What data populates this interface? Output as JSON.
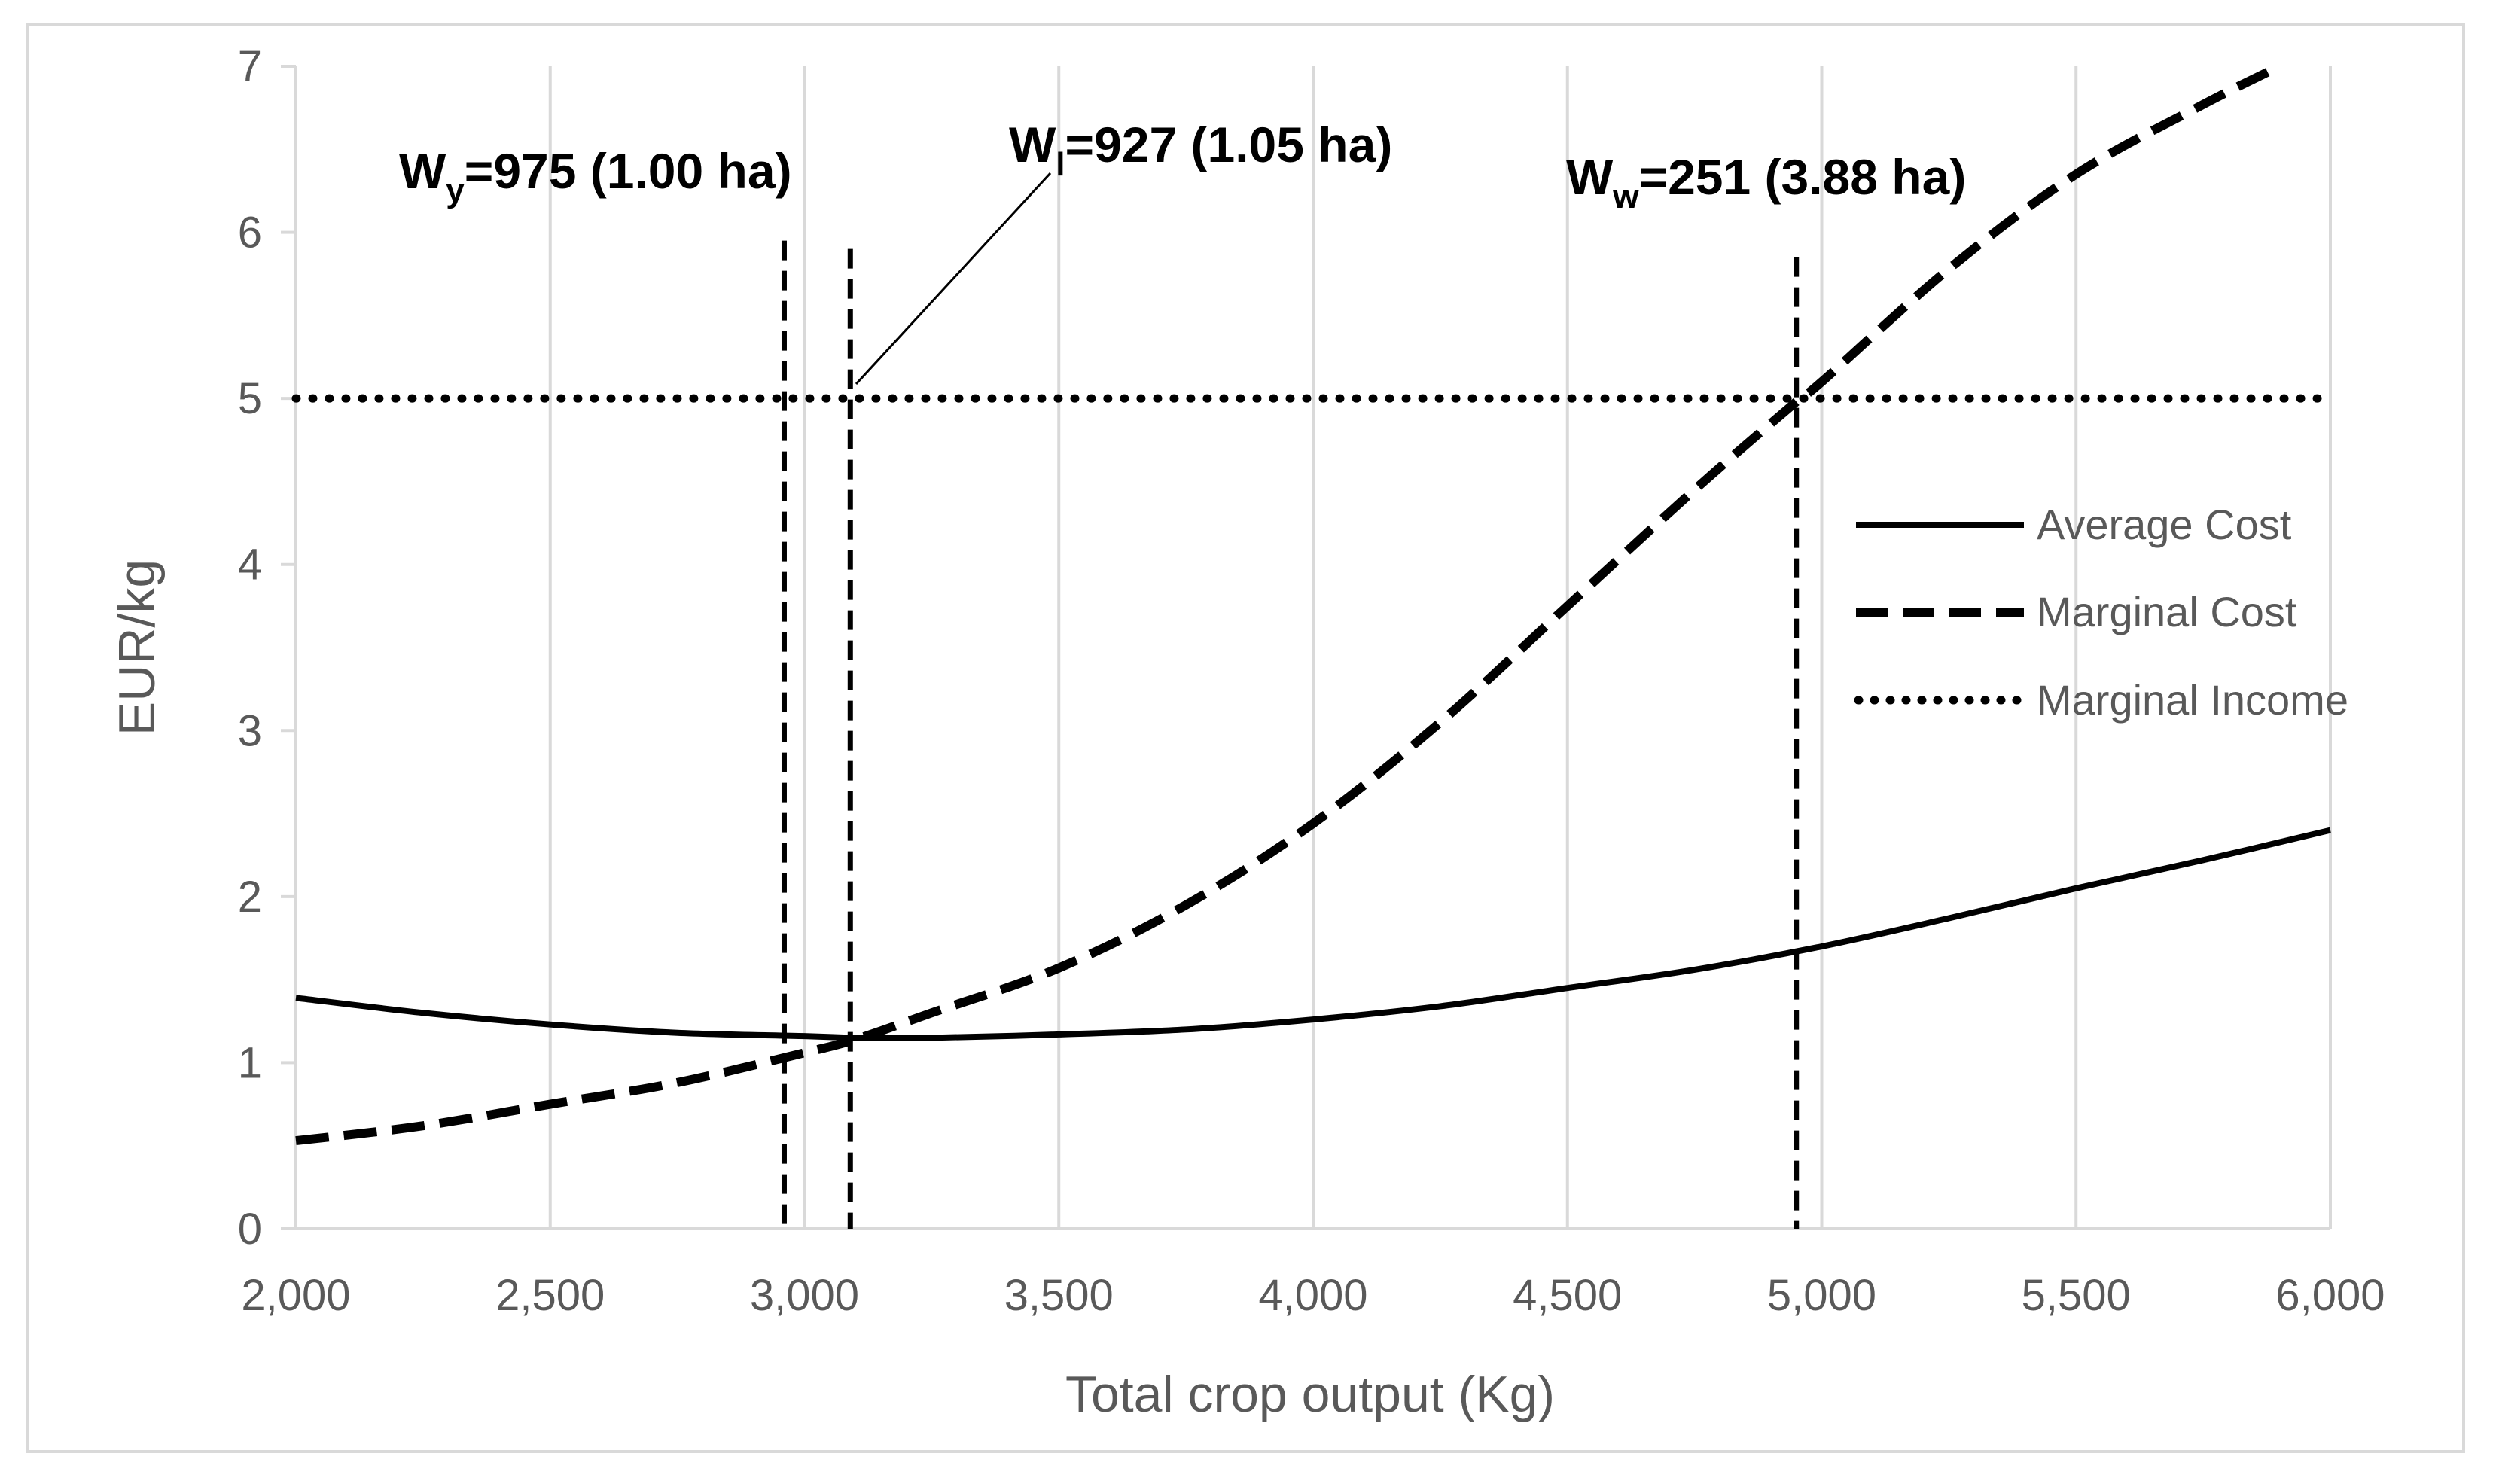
{
  "chart_data": {
    "type": "line",
    "xlabel": "Total crop output (Kg)",
    "ylabel": "EUR/kg",
    "xlim": [
      2000,
      6000
    ],
    "ylim": [
      0,
      7
    ],
    "x_ticks": [
      2000,
      2500,
      3000,
      3500,
      4000,
      4500,
      5000,
      5500,
      6000
    ],
    "x_tick_labels": [
      "2,000",
      "2,500",
      "3,000",
      "3,500",
      "4,000",
      "4,500",
      "5,000",
      "5,500",
      "6,000"
    ],
    "y_ticks": [
      0,
      1,
      2,
      3,
      4,
      5,
      6,
      7
    ],
    "y_tick_labels": [
      "0",
      "1",
      "2",
      "3",
      "4",
      "5",
      "6",
      "7"
    ],
    "grid": "vertical",
    "legend_position": "right",
    "series": [
      {
        "name": "Average Cost",
        "style": "solid",
        "x": [
          2000,
          2250,
          2500,
          2750,
          3000,
          3100,
          3250,
          3500,
          3750,
          4000,
          4250,
          4500,
          4750,
          5000,
          5250,
          5500,
          5750,
          6000
        ],
        "values": [
          1.39,
          1.3,
          1.23,
          1.18,
          1.16,
          1.15,
          1.15,
          1.17,
          1.2,
          1.26,
          1.34,
          1.45,
          1.56,
          1.7,
          1.87,
          2.05,
          2.22,
          2.4
        ]
      },
      {
        "name": "Marginal Cost",
        "style": "dashed",
        "x": [
          2000,
          2250,
          2500,
          2750,
          3000,
          3100,
          3250,
          3500,
          3750,
          4000,
          4250,
          4500,
          4750,
          4950,
          5000,
          5250,
          5500,
          5750,
          5900
        ],
        "values": [
          0.53,
          0.62,
          0.75,
          0.88,
          1.06,
          1.14,
          1.3,
          1.57,
          1.95,
          2.44,
          3.05,
          3.75,
          4.45,
          4.98,
          5.1,
          5.78,
          6.35,
          6.77,
          7.0
        ]
      },
      {
        "name": "Marginal Income",
        "style": "dotted",
        "x": [
          2000,
          6000
        ],
        "values": [
          5,
          5
        ]
      }
    ],
    "reference_lines": [
      {
        "x": 2960,
        "y_top": 5.95
      },
      {
        "x": 3090,
        "y_top": 5.9
      },
      {
        "x": 4950,
        "y_top": 5.85
      }
    ],
    "annotations": [
      {
        "main": "W",
        "sub": "y",
        "rest": "=975 (1.00 ha)"
      },
      {
        "main": "W",
        "sub": "l",
        "rest": "=927 (1.05 ha)"
      },
      {
        "main": "W",
        "sub": "w",
        "rest": "=251 (3.88 ha)"
      }
    ],
    "colors": {
      "line": "#000000",
      "grid": "#d9d9d9",
      "text": "#595959"
    }
  }
}
